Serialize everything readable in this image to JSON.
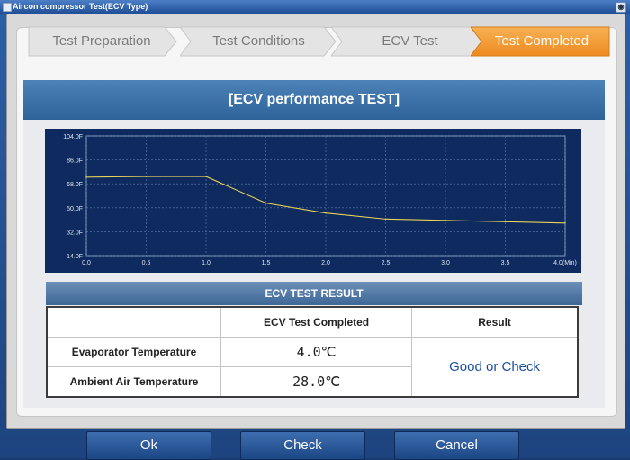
{
  "window": {
    "title": "Aircon compressor Test(ECV Type)"
  },
  "steps": [
    "Test Preparation",
    "Test Conditions",
    "ECV Test",
    "Test Completed"
  ],
  "colors": {
    "active_step": "#f39a2b",
    "inactive_step": "#e2e2e2",
    "header": "#3a72a8",
    "chart_bg": "#0e2a5e",
    "line": "#e6d25a"
  },
  "section_title": "[ECV performance TEST]",
  "chart_data": {
    "type": "line",
    "x": [
      0.0,
      0.5,
      1.0,
      1.5,
      2.0,
      2.5,
      3.0,
      3.5,
      4.0
    ],
    "series": [
      {
        "values": [
          73.0,
          73.5,
          73.5,
          53.5,
          46.0,
          41.5,
          40.5,
          39.5,
          38.5
        ]
      }
    ],
    "xticks": [
      "0.0",
      "0.5",
      "1.0",
      "1.5",
      "2.0",
      "2.5",
      "3.0",
      "3.5",
      "4.0(Min)"
    ],
    "yticks": [
      "14.0F",
      "32.0F",
      "50.0F",
      "68.0F",
      "86.0F",
      "104.0F"
    ],
    "xlim": [
      0,
      4
    ],
    "ylim": [
      14,
      104
    ],
    "grid": true
  },
  "result": {
    "title": "ECV TEST RESULT",
    "col_completed": "ECV Test Completed",
    "col_result": "Result",
    "rows": [
      {
        "label": "Evaporator Temperature",
        "value": "4.0℃"
      },
      {
        "label": "Ambient Air Temperature",
        "value": "28.0℃"
      }
    ],
    "result_text": "Good or Check"
  },
  "buttons": {
    "ok": "Ok",
    "check": "Check",
    "cancel": "Cancel"
  }
}
